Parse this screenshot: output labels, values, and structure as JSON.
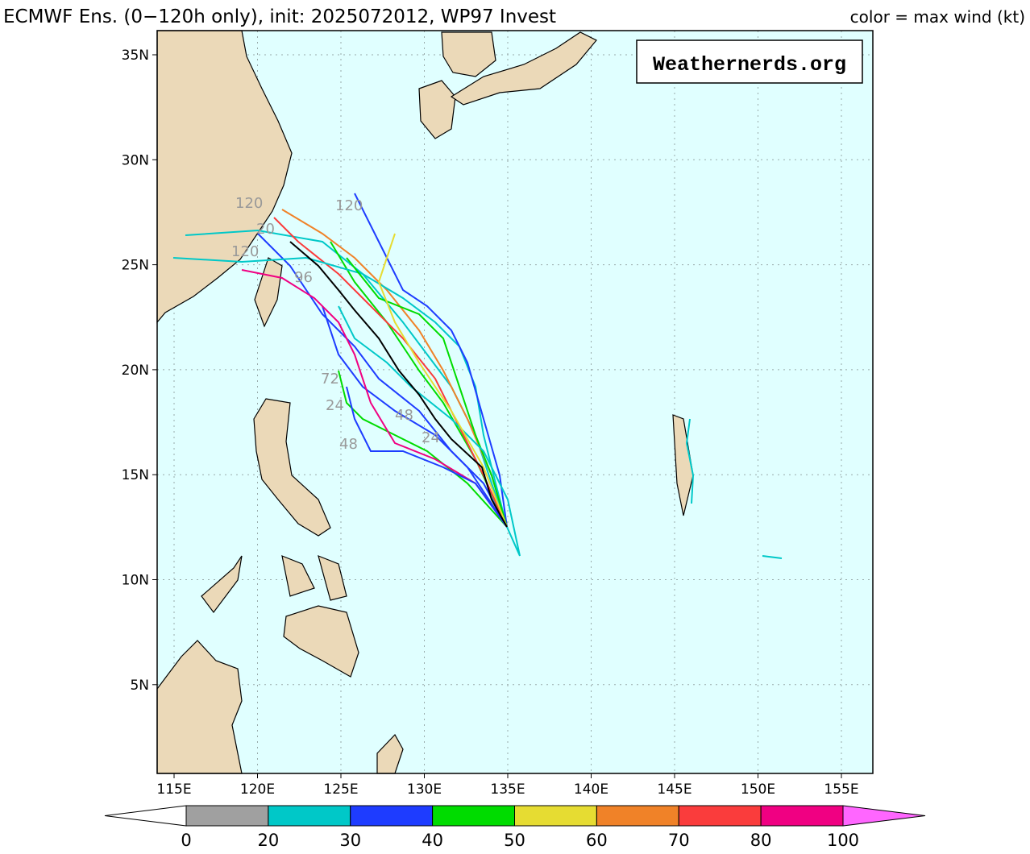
{
  "header": {
    "title": "ECMWF Ens. (0−120h only), init: 2025072012, WP97 Invest",
    "legend_title": "color = max wind (kt)"
  },
  "logo": "Weathernerds.org",
  "map": {
    "lon_ticks": [
      "115E",
      "120E",
      "125E",
      "130E",
      "135E",
      "140E",
      "145E",
      "150E",
      "155E"
    ],
    "lat_ticks": [
      "35N",
      "30N",
      "25N",
      "20N",
      "15N",
      "10N",
      "5N"
    ],
    "track_labels": [
      "120",
      "120",
      "20",
      "120",
      "96",
      "72",
      "24",
      "48",
      "24",
      "48"
    ]
  },
  "colorbar": {
    "levels": [
      0,
      20,
      30,
      40,
      50,
      60,
      70,
      80,
      100
    ],
    "colors": [
      "#a0a0a0",
      "#00c8c8",
      "#1e3cff",
      "#00dc00",
      "#e6dc32",
      "#f08228",
      "#fa3c3c",
      "#f00082"
    ],
    "over_color": "#ff66ff"
  }
}
